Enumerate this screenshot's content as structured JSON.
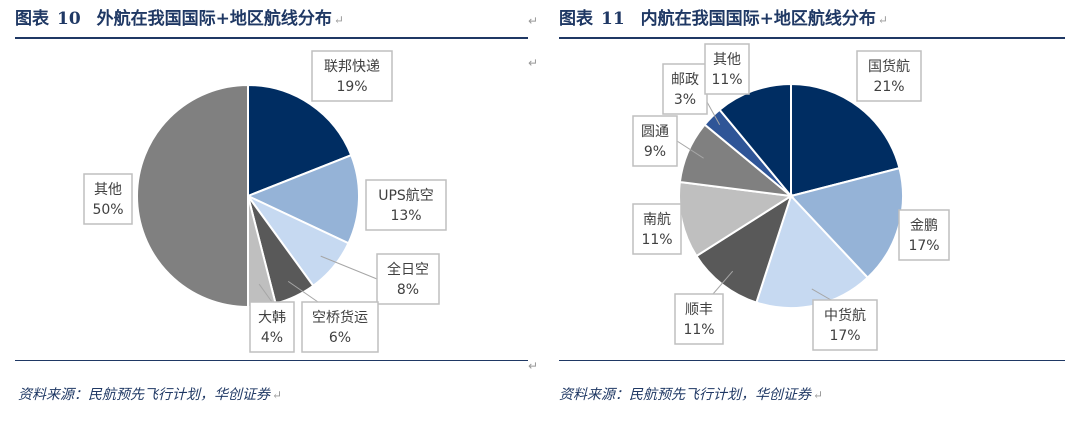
{
  "chart_data": [
    {
      "type": "pie",
      "figure_label": "图表",
      "figure_number": "10",
      "title": "外航在我国国际+地区航线分布",
      "source": "资料来源：民航预先飞行计划，华创证券",
      "slices": [
        {
          "name": "联邦快递",
          "value": 19,
          "value_label": "19%",
          "color": "#002d62"
        },
        {
          "name": "UPS航空",
          "value": 13,
          "value_label": "13%",
          "color": "#95b3d7"
        },
        {
          "name": "全日空",
          "value": 8,
          "value_label": "8%",
          "color": "#c6d9f1"
        },
        {
          "name": "空桥货运",
          "value": 6,
          "value_label": "6%",
          "color": "#595959"
        },
        {
          "name": "大韩",
          "value": 4,
          "value_label": "4%",
          "color": "#bfbfbf"
        },
        {
          "name": "其他",
          "value": 50,
          "value_label": "50%",
          "color": "#808080"
        }
      ]
    },
    {
      "type": "pie",
      "figure_label": "图表",
      "figure_number": "11",
      "title": "内航在我国国际+地区航线分布",
      "source": "资料来源：民航预先飞行计划，华创证券",
      "slices": [
        {
          "name": "国货航",
          "value": 21,
          "value_label": "21%",
          "color": "#002d62"
        },
        {
          "name": "金鹏",
          "value": 17,
          "value_label": "17%",
          "color": "#95b3d7"
        },
        {
          "name": "中货航",
          "value": 17,
          "value_label": "17%",
          "color": "#c6d9f1"
        },
        {
          "name": "顺丰",
          "value": 11,
          "value_label": "11%",
          "color": "#595959"
        },
        {
          "name": "南航",
          "value": 11,
          "value_label": "11%",
          "color": "#bfbfbf"
        },
        {
          "name": "圆通",
          "value": 9,
          "value_label": "9%",
          "color": "#808080"
        },
        {
          "name": "邮政",
          "value": 3,
          "value_label": "3%",
          "color": "#2f5597"
        },
        {
          "name": "其他",
          "value": 11,
          "value_label": "11%",
          "color": "#002d62"
        }
      ]
    }
  ],
  "return_mark": "↵"
}
